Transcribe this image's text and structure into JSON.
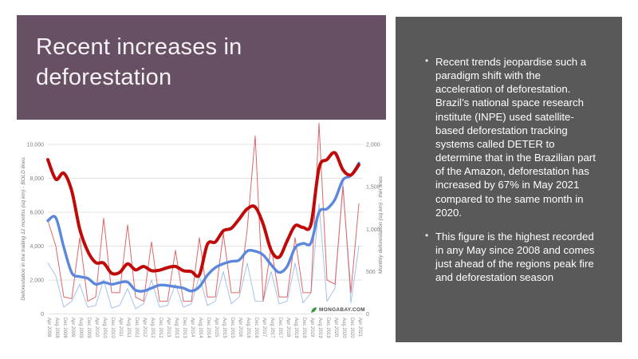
{
  "slide": {
    "title": "Recent increases in deforestation",
    "title_box_color": "#685064",
    "background": "#ffffff"
  },
  "sidebar": {
    "background": "#595959",
    "bullets": [
      "Recent trends jeopardise such a paradigm shift with the acceleration of deforestation. Brazil’s national space research institute (INPE) used satellite-based deforestation tracking systems called DETER to determine that in the Brazilian part of the Amazon, deforestation has increased by 67% in May 2021 compared to the same month in 2020.",
      "This figure is the highest recorded in any May since 2008 and comes just ahead of the regions peak fire and deforestation season"
    ]
  },
  "watermark": {
    "text": "MONGABAY.COM",
    "leaf_color": "#43a047",
    "text_color": "#4d4d4d"
  },
  "chart_data": {
    "type": "line",
    "grid": true,
    "legend": "none",
    "x_labels": [
      "Apr 2008",
      "Aug 2008",
      "Dec 2008",
      "Apr 2009",
      "Aug 2009",
      "Dec 2009",
      "Apr 2010",
      "Aug 2010",
      "Dec 2010",
      "Apr 2011",
      "Aug 2011",
      "Dec 2011",
      "Apr 2012",
      "Aug 2012",
      "Dec 2012",
      "Apr 2013",
      "Aug 2013",
      "Dec 2013",
      "Apr 2014",
      "Aug 2014",
      "Dec 2014",
      "Apr 2015",
      "Aug 2015",
      "Dec 2015",
      "Apr 2016",
      "Aug 2016",
      "Dec 2016",
      "Apr 2017",
      "Aug 2017",
      "Dec 2017",
      "Apr 2018",
      "Aug 2018",
      "Dec 2018",
      "Apr 2019",
      "Aug 2019",
      "Dec 2019",
      "Apr 2020",
      "Aug 2020",
      "Dec 2020",
      "Apr 2021"
    ],
    "left_axis": {
      "title": "Deforestation in the trailing 12 months (sq km) - BOLD lines",
      "tick_labels": [
        "0",
        "2,000",
        "4,000",
        "6,000",
        "8,000",
        "10,000"
      ],
      "range": [
        0,
        10000
      ]
    },
    "right_axis": {
      "title": "Monthly deforestation (sq km) - thin lines",
      "tick_labels": [
        "0",
        "500",
        "1,000",
        "1,500",
        "2,000"
      ],
      "range": [
        0,
        2000
      ]
    },
    "series": [
      {
        "name": "monthly-deforestation-thin-blue",
        "axis": "right",
        "color": "#a4c2ec",
        "width": 1,
        "smooth": false,
        "values": [
          600,
          450,
          80,
          150,
          350,
          80,
          100,
          400,
          70,
          100,
          300,
          60,
          120,
          400,
          80,
          100,
          350,
          80,
          120,
          450,
          100,
          150,
          500,
          120,
          200,
          600,
          150,
          150,
          500,
          120,
          150,
          600,
          130,
          250,
          1300,
          150,
          300,
          1550,
          130,
          800
        ]
      },
      {
        "name": "monthly-deforestation-thin-red",
        "axis": "right",
        "color": "#e06666",
        "width": 1,
        "smooth": false,
        "values": [
          1100,
          800,
          200,
          180,
          900,
          150,
          200,
          1130,
          250,
          250,
          1050,
          200,
          150,
          850,
          150,
          150,
          750,
          150,
          150,
          900,
          200,
          200,
          950,
          250,
          250,
          1000,
          2100,
          150,
          800,
          200,
          200,
          900,
          250,
          250,
          2250,
          400,
          350,
          1500,
          250,
          1300
        ]
      },
      {
        "name": "trailing-12mo-deforestation-bold-blue",
        "axis": "left",
        "color": "#5b87dd",
        "width": 3.4,
        "smooth": true,
        "values": [
          5500,
          5670,
          3940,
          2430,
          2200,
          2100,
          1750,
          1870,
          1750,
          1850,
          1880,
          1400,
          1350,
          1525,
          1700,
          1675,
          1600,
          1525,
          1350,
          1600,
          2280,
          2730,
          2960,
          3100,
          3180,
          3710,
          3700,
          3480,
          2900,
          2450,
          2800,
          3900,
          4160,
          4200,
          6000,
          6200,
          6750,
          7900,
          8165,
          8900
        ]
      },
      {
        "name": "trailing-12mo-deforestation-bold-red",
        "axis": "left",
        "color": "#c00a0a",
        "width": 4,
        "smooth": true,
        "values": [
          9100,
          7950,
          8300,
          7250,
          5000,
          3700,
          3030,
          3000,
          2400,
          2450,
          2950,
          2600,
          2800,
          2550,
          2580,
          2730,
          2800,
          2550,
          2500,
          2300,
          4100,
          4240,
          4900,
          5050,
          5600,
          6200,
          6300,
          5300,
          3750,
          3350,
          4300,
          5200,
          5100,
          5300,
          8600,
          9100,
          9500,
          8500,
          8200,
          8800
        ]
      }
    ],
    "style": {
      "gridline_color": "#e3e3e3",
      "tick_label_color": "#808080",
      "x_label_color": "#8a8a8a",
      "axis_title_color": "#757575"
    }
  }
}
